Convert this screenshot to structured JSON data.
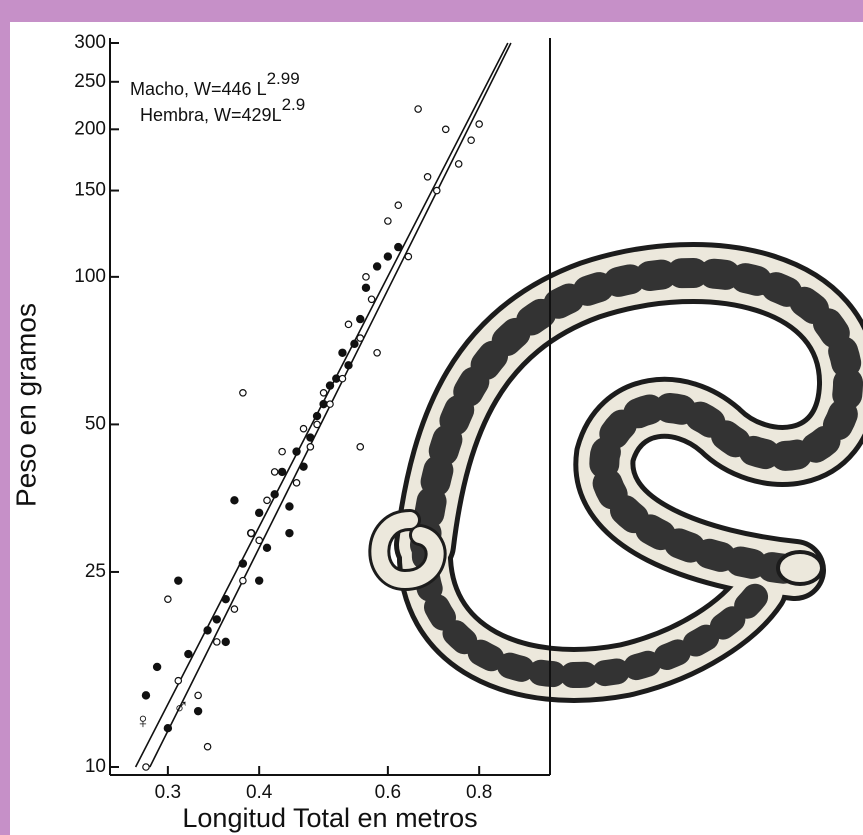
{
  "chart_data": {
    "type": "scatter",
    "xlabel": "Longitud Total en metros",
    "ylabel": "Peso en gramos",
    "log_x": true,
    "log_y": true,
    "xlim": [
      0.25,
      1.0
    ],
    "ylim": [
      10,
      300
    ],
    "xticks": [
      0.3,
      0.4,
      0.6,
      0.8
    ],
    "yticks": [
      10,
      25,
      50,
      100,
      150,
      200,
      250,
      300
    ],
    "fits": [
      {
        "label": "Macho, W=",
        "coef": 446,
        "symbol": "L",
        "exp": 2.99,
        "sex_symbol": "♂"
      },
      {
        "label": "Hembra, W=",
        "coef": 429,
        "symbol": "L",
        "exp": 2.9,
        "sex_symbol": "♀"
      }
    ],
    "series": [
      {
        "color": "#111111",
        "filled": true,
        "x": [
          0.28,
          0.29,
          0.3,
          0.31,
          0.32,
          0.33,
          0.34,
          0.35,
          0.36,
          0.37,
          0.38,
          0.39,
          0.4,
          0.41,
          0.42,
          0.43,
          0.44,
          0.45,
          0.46,
          0.47,
          0.48,
          0.49,
          0.5,
          0.51,
          0.52,
          0.53,
          0.54,
          0.55,
          0.56,
          0.58,
          0.6,
          0.62,
          0.36,
          0.4,
          0.44
        ],
        "values": [
          14,
          16,
          12,
          24,
          17,
          13,
          19,
          20,
          18,
          35,
          26,
          30,
          33,
          28,
          36,
          40,
          34,
          44,
          41,
          47,
          52,
          55,
          60,
          62,
          70,
          66,
          73,
          82,
          95,
          105,
          110,
          115,
          22,
          24,
          30
        ]
      },
      {
        "color": "#111111",
        "filled": false,
        "x": [
          0.28,
          0.3,
          0.31,
          0.33,
          0.34,
          0.35,
          0.37,
          0.38,
          0.39,
          0.4,
          0.41,
          0.42,
          0.43,
          0.45,
          0.46,
          0.47,
          0.48,
          0.49,
          0.5,
          0.52,
          0.53,
          0.55,
          0.56,
          0.57,
          0.58,
          0.6,
          0.62,
          0.64,
          0.66,
          0.68,
          0.7,
          0.72,
          0.75,
          0.78,
          0.8,
          0.38,
          0.55
        ],
        "values": [
          10,
          22,
          15,
          14,
          11,
          18,
          21,
          24,
          30,
          29,
          35,
          40,
          44,
          38,
          49,
          45,
          50,
          58,
          55,
          62,
          80,
          75,
          100,
          90,
          70,
          130,
          140,
          110,
          220,
          160,
          150,
          200,
          170,
          190,
          205,
          58,
          45
        ]
      }
    ]
  }
}
